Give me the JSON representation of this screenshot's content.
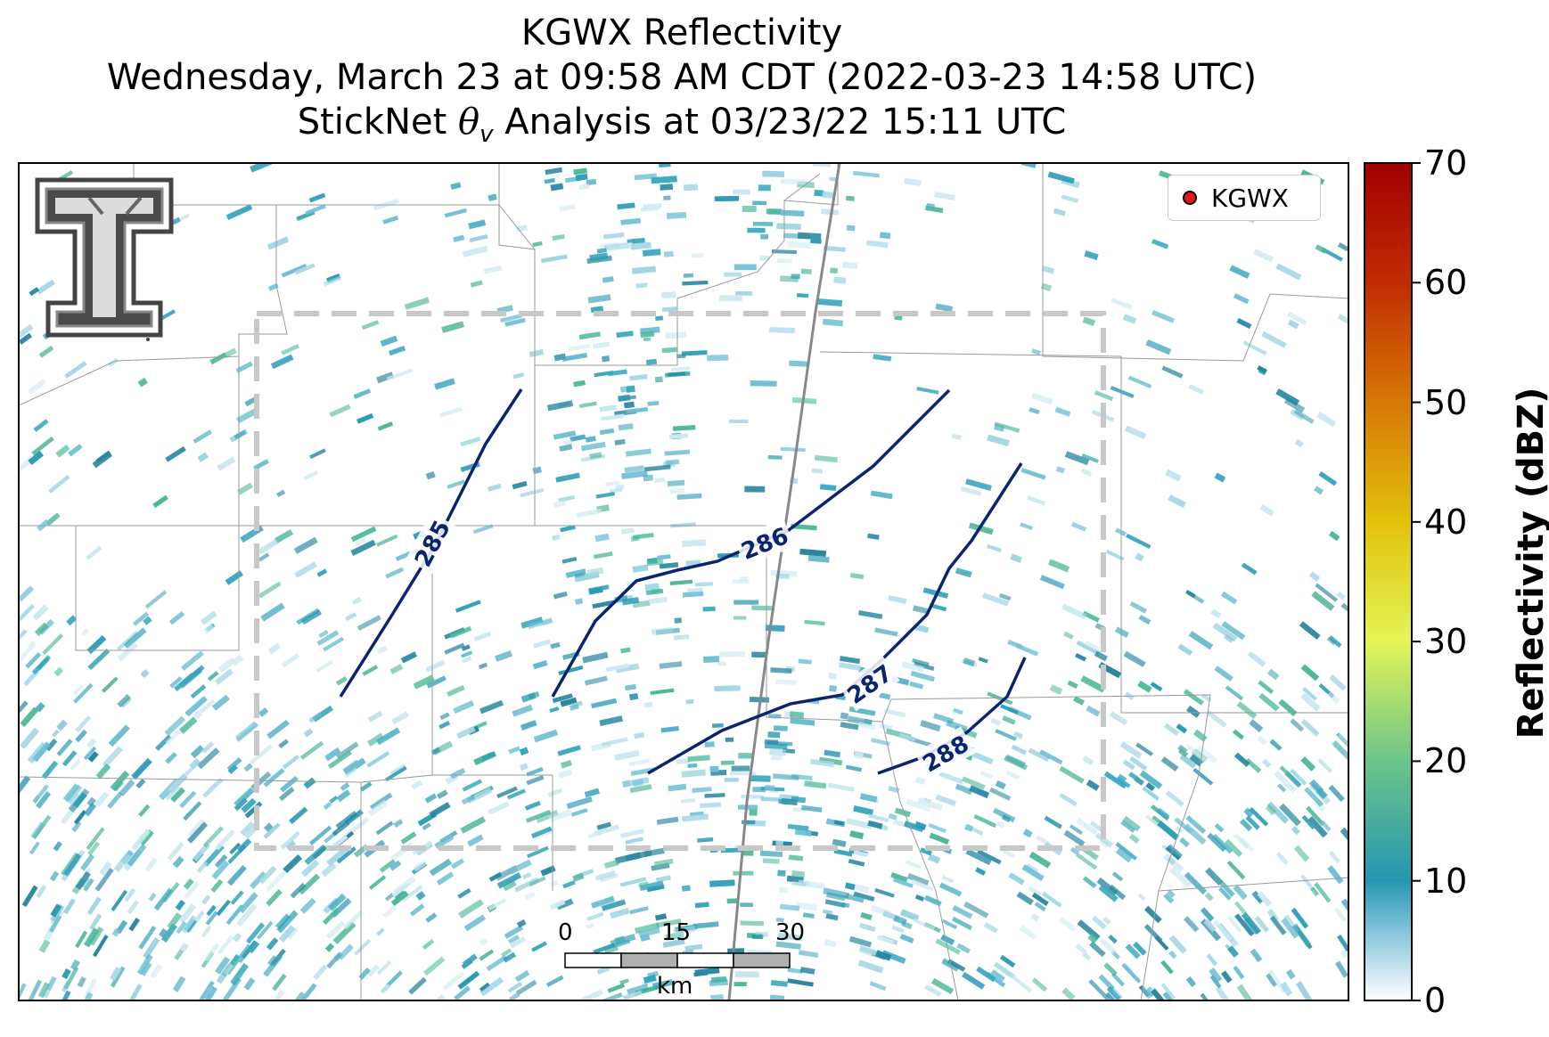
{
  "title": {
    "line1": "KGWX Reflectivity",
    "line2": "Wednesday, March 23 at 09:58 AM CDT (2022-03-23 14:58 UTC)",
    "line3_prefix": "StickNet",
    "line3_symbol": "θ",
    "line3_subscript": "v",
    "line3_suffix": "Analysis at 03/23/22 15:11 UTC"
  },
  "legend": {
    "label": "KGWX",
    "marker_color": "#e8151b"
  },
  "colorbar": {
    "label": "Reflectivity (dBZ)",
    "ticks": [
      0,
      10,
      20,
      30,
      40,
      50,
      60,
      70
    ],
    "range": [
      0,
      70
    ],
    "colors": [
      "#ffffff",
      "#2596b0",
      "#6cc48a",
      "#e4f556",
      "#e4a20a",
      "#c84a02",
      "#a00000"
    ]
  },
  "contours": [
    {
      "value": "285"
    },
    {
      "value": "286"
    },
    {
      "value": "287"
    },
    {
      "value": "288"
    }
  ],
  "contour_color": "#0a2470",
  "scale_bar": {
    "ticks": [
      "0",
      "15",
      "30"
    ],
    "unit": "km"
  },
  "logo": {
    "name": "Texas Tech Double T"
  },
  "analysis_box": {
    "style": "dashed",
    "color": "#c8c8c8"
  }
}
